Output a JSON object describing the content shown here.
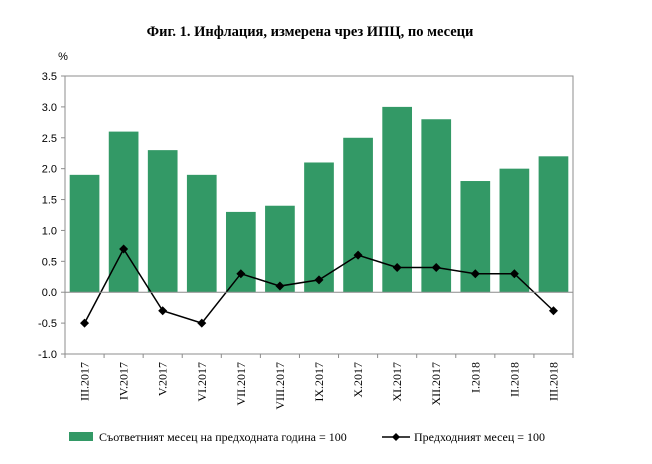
{
  "chart_data": {
    "type": "bar",
    "title": "Фиг. 1. Инфлация, измерена чрез ИПЦ, по месеци",
    "ylabel": "%",
    "xlabel": "",
    "ylim": [
      -1.0,
      3.5
    ],
    "ytick_step": 0.5,
    "y_tick_labels": [
      "-1.0",
      "-0.5",
      "0.0",
      "0.5",
      "1.0",
      "1.5",
      "2.0",
      "2.5",
      "3.0",
      "3.5"
    ],
    "grid": false,
    "legend_position": "bottom",
    "categories": [
      "III.2017",
      "IV.2017",
      "V.2017",
      "VI.2017",
      "VII.2017",
      "VIII.2017",
      "IX.2017",
      "X.2017",
      "XI.2017",
      "XII.2017",
      "I.2018",
      "II.2018",
      "III.2018"
    ],
    "series": [
      {
        "name": "Съответният месец на предходната година = 100",
        "type": "bar",
        "color": "#339966",
        "values": [
          1.9,
          2.6,
          2.3,
          1.9,
          1.3,
          1.4,
          2.1,
          2.5,
          3.0,
          2.8,
          1.8,
          2.0,
          2.2
        ]
      },
      {
        "name": "Предходният месец = 100",
        "type": "line",
        "color": "#000000",
        "marker": "diamond",
        "values": [
          -0.5,
          0.7,
          -0.3,
          -0.5,
          0.3,
          0.1,
          0.2,
          0.6,
          0.4,
          0.4,
          0.3,
          0.3,
          -0.3
        ]
      }
    ]
  }
}
